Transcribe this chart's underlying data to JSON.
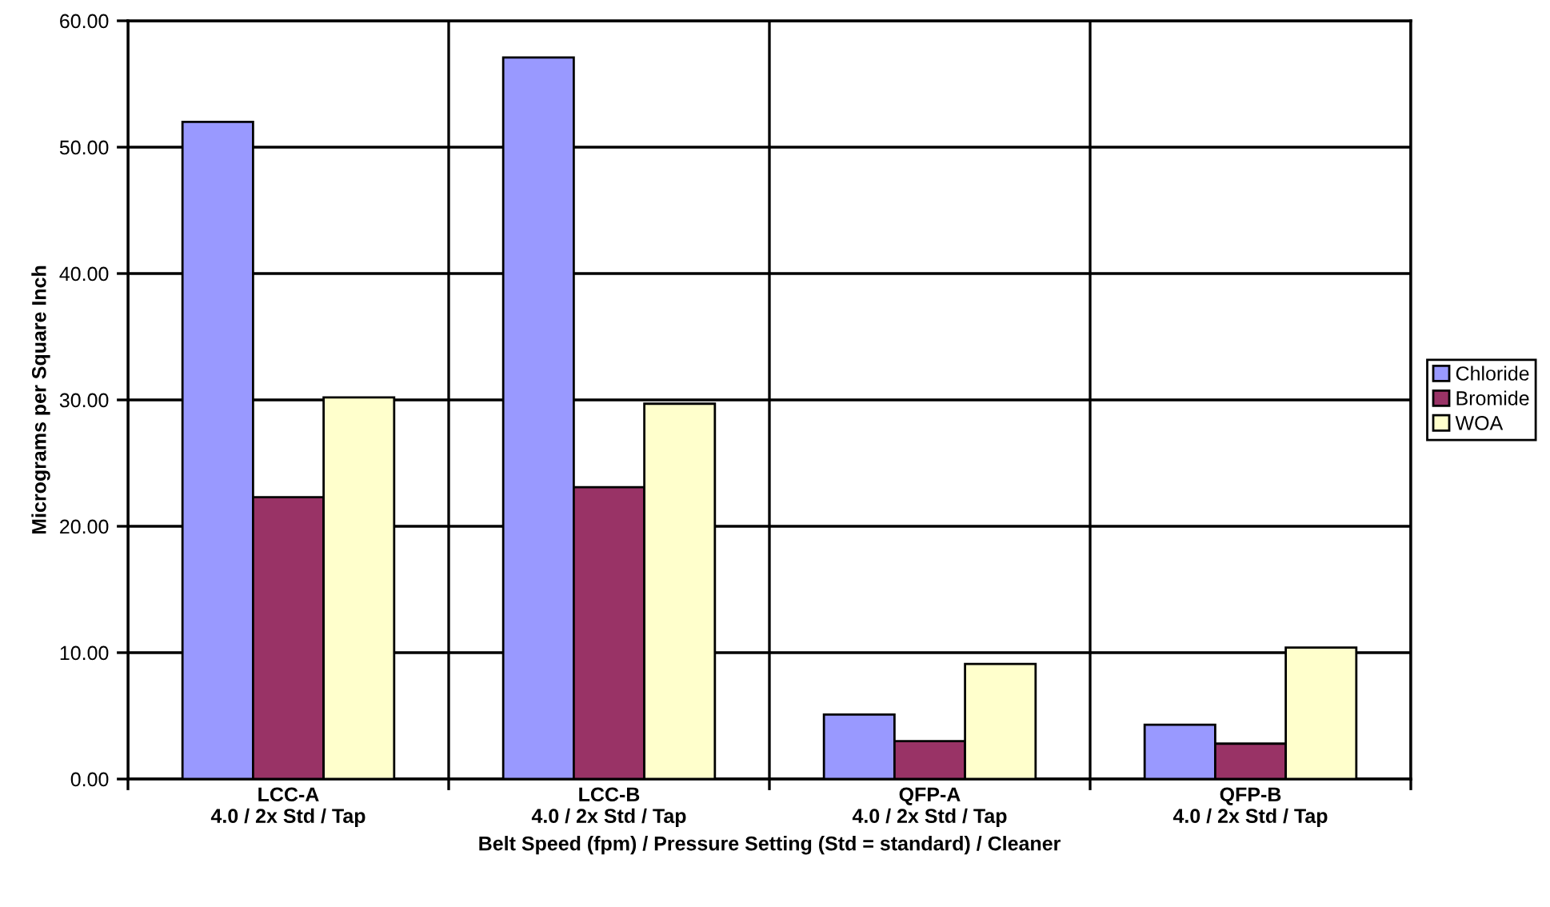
{
  "chart_data": {
    "type": "bar",
    "xlabel": "Belt Speed (fpm) / Pressure Setting (Std = standard) / Cleaner",
    "ylabel": "Micrograms per Square Inch",
    "categories": [
      "LCC-A\n4.0 / 2x Std / Tap",
      "LCC-B\n4.0 / 2x Std / Tap",
      "QFP-A\n4.0 / 2x Std / Tap",
      "QFP-B\n4.0 / 2x Std / Tap"
    ],
    "series": [
      {
        "name": "Chloride",
        "color": "#9999ff",
        "values": [
          52.0,
          57.1,
          5.1,
          4.3
        ]
      },
      {
        "name": "Bromide",
        "color": "#993366",
        "values": [
          22.3,
          23.1,
          3.0,
          2.8
        ]
      },
      {
        "name": "WOA",
        "color": "#ffffcc",
        "values": [
          30.2,
          29.7,
          9.1,
          10.4
        ]
      }
    ],
    "ylim": [
      0,
      60
    ],
    "yticks": [
      {
        "value": 0,
        "label": "0.00"
      },
      {
        "value": 10,
        "label": "10.00"
      },
      {
        "value": 20,
        "label": "20.00"
      },
      {
        "value": 30,
        "label": "30.00"
      },
      {
        "value": 40,
        "label": "40.00"
      },
      {
        "value": 50,
        "label": "50.00"
      },
      {
        "value": 60,
        "label": "60.00"
      }
    ],
    "grid": true,
    "legend": "right"
  }
}
